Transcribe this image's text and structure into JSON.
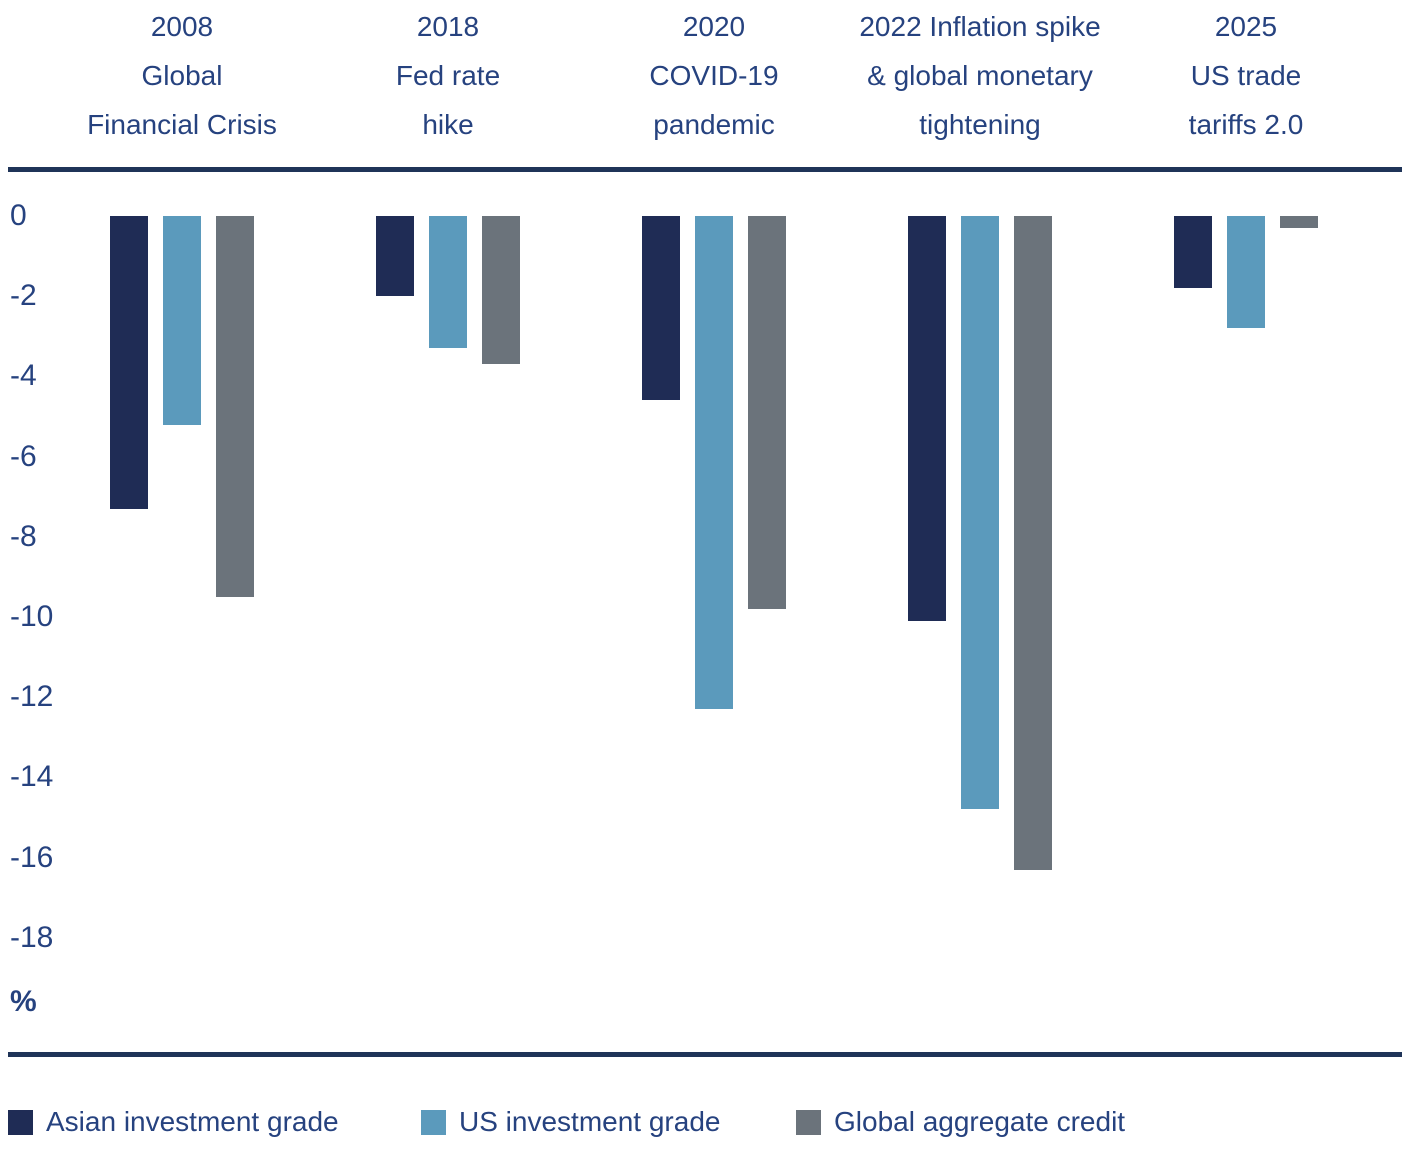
{
  "chart_data": {
    "type": "bar",
    "title": "",
    "xlabel": "",
    "ylabel": "%",
    "unit": "%",
    "grid": false,
    "legend_position": "bottom",
    "categories": [
      {
        "lines": [
          "2008",
          "Global",
          "Financial Crisis"
        ]
      },
      {
        "lines": [
          "2018",
          "Fed rate",
          "hike"
        ]
      },
      {
        "lines": [
          "2020",
          "COVID-19",
          "pandemic"
        ]
      },
      {
        "lines": [
          "2022 Inflation spike",
          "& global monetary",
          "tightening"
        ]
      },
      {
        "lines": [
          "2025",
          "US trade",
          "tariffs 2.0"
        ]
      }
    ],
    "series": [
      {
        "name": "Asian investment grade",
        "color": "#1f2c55",
        "values": [
          -7.3,
          -2.0,
          -4.6,
          -10.1,
          -1.8
        ]
      },
      {
        "name": "US investment grade",
        "color": "#5b9abc",
        "values": [
          -5.2,
          -3.3,
          -12.3,
          -14.8,
          -2.8
        ]
      },
      {
        "name": "Global aggregate credit",
        "color": "#6b737b",
        "values": [
          -9.5,
          -3.7,
          -9.8,
          -16.3,
          -0.3
        ]
      }
    ],
    "y_axis": {
      "ticks": [
        0,
        -2,
        -4,
        -6,
        -8,
        -10,
        -12,
        -14,
        -16,
        -18
      ],
      "label": "%",
      "min": -18,
      "max": 0
    }
  },
  "colors": {
    "text": "#26427f",
    "rule": "#1f3458"
  }
}
